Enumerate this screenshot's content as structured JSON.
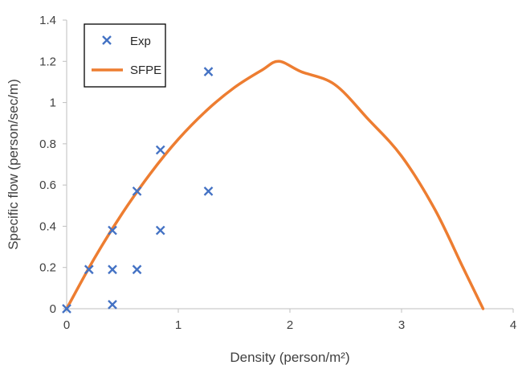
{
  "chart_data": {
    "type": "scatter",
    "xlabel": "Density (person/m²)",
    "ylabel": "Specific flow (person/sec/m)",
    "xlim": [
      0,
      4
    ],
    "ylim": [
      0,
      1.4
    ],
    "x_ticks": [
      "0",
      "1",
      "2",
      "3",
      "4"
    ],
    "y_ticks": [
      "0",
      "0.2",
      "0.4",
      "0.6",
      "0.8",
      "1",
      "1.2",
      "1.4"
    ],
    "grid": false,
    "legend": {
      "placement": "top-left",
      "entries": [
        "Exp",
        "SFPE"
      ]
    },
    "series": [
      {
        "name": "Exp",
        "type": "scatter",
        "marker": "x",
        "color": "#4472C4",
        "points": [
          [
            0,
            0
          ],
          [
            0.2,
            0.19
          ],
          [
            0.41,
            0.38
          ],
          [
            0.41,
            0.19
          ],
          [
            0.41,
            0.02
          ],
          [
            0.63,
            0.57
          ],
          [
            0.63,
            0.19
          ],
          [
            0.84,
            0.77
          ],
          [
            0.84,
            0.38
          ],
          [
            1.27,
            1.15
          ],
          [
            1.27,
            0.57
          ]
        ]
      },
      {
        "name": "SFPE",
        "type": "line",
        "color": "#ED7D31",
        "points": [
          [
            0,
            0
          ],
          [
            0.25,
            0.246
          ],
          [
            0.5,
            0.464
          ],
          [
            0.75,
            0.656
          ],
          [
            1,
            0.822
          ],
          [
            1.25,
            0.96
          ],
          [
            1.5,
            1.072
          ],
          [
            1.75,
            1.158
          ],
          [
            1.9,
            1.2
          ],
          [
            2.1,
            1.15
          ],
          [
            2.4,
            1.088
          ],
          [
            2.7,
            0.92
          ],
          [
            3.0,
            0.74
          ],
          [
            3.3,
            0.48
          ],
          [
            3.55,
            0.2
          ],
          [
            3.73,
            0
          ]
        ]
      }
    ]
  }
}
